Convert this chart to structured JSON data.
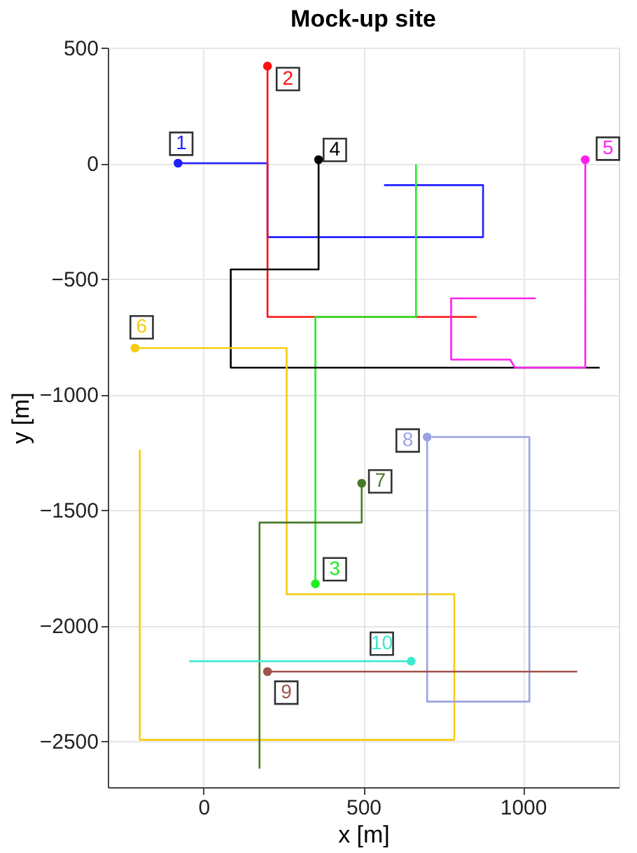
{
  "chart_data": {
    "type": "line",
    "title": "Mock-up site",
    "xlabel": "x [m]",
    "ylabel": "y [m]",
    "xlim": [
      -300,
      1300
    ],
    "ylim": [
      -2700,
      500
    ],
    "xticks": [
      0,
      500,
      1000
    ],
    "yticks": [
      500,
      0,
      -500,
      -1000,
      -1500,
      -2000,
      -2500
    ],
    "grid": true,
    "legend": false,
    "series": [
      {
        "color": "#2020ff",
        "x": [
          -80,
          200,
          200,
          875,
          875,
          565
        ],
        "values": [
          0,
          0,
          -320,
          -320,
          -95,
          -95
        ]
      },
      {
        "color": "#ff1010",
        "x": [
          200,
          200,
          855
        ],
        "values": [
          420,
          -665,
          -665
        ]
      },
      {
        "color": "#20ee20",
        "x": [
          350,
          350,
          665,
          665
        ],
        "values": [
          -1820,
          -665,
          -665,
          -5
        ]
      },
      {
        "color": "#000000",
        "x": [
          360,
          360,
          85,
          85,
          1240
        ],
        "values": [
          15,
          -460,
          -460,
          -885,
          -885
        ]
      },
      {
        "color": "#ff20ee",
        "x": [
          1195,
          1195,
          975,
          960,
          775,
          775,
          1040
        ],
        "values": [
          15,
          -885,
          -885,
          -850,
          -850,
          -585,
          -585
        ]
      },
      {
        "color": "#f5cc10",
        "x": [
          -215,
          260,
          260,
          785,
          785,
          -200,
          -200
        ],
        "values": [
          -800,
          -800,
          -1865,
          -1865,
          -2495,
          -2495,
          -1240
        ]
      },
      {
        "color": "#4a7a28",
        "x": [
          495,
          495,
          175,
          175
        ],
        "values": [
          -1385,
          -1555,
          -1555,
          -2620
        ]
      },
      {
        "color": "#9aa2e4",
        "x": [
          700,
          700,
          1020,
          1020,
          715
        ],
        "values": [
          -1185,
          -2330,
          -2330,
          -1185,
          -1185
        ]
      },
      {
        "color": "#a0524d",
        "x": [
          200,
          1170
        ],
        "values": [
          -2200,
          -2200
        ]
      },
      {
        "color": "#40e8d0",
        "x": [
          650,
          -45
        ],
        "values": [
          -2155,
          -2155
        ]
      }
    ],
    "annotations": [
      {
        "text": "1",
        "x": -70,
        "y": 84
      },
      {
        "text": "2",
        "x": 264,
        "y": 364
      },
      {
        "text": "3",
        "x": 411,
        "y": -1757
      },
      {
        "text": "4",
        "x": 411,
        "y": 57
      },
      {
        "text": "5",
        "x": 1266,
        "y": 63
      },
      {
        "text": "6",
        "x": -194,
        "y": -710
      },
      {
        "text": "7",
        "x": 553,
        "y": -1377
      },
      {
        "text": "8",
        "x": 639,
        "y": -1200
      },
      {
        "text": "9",
        "x": 259,
        "y": -2291
      },
      {
        "text": "10",
        "x": 558,
        "y": -2079
      }
    ]
  }
}
